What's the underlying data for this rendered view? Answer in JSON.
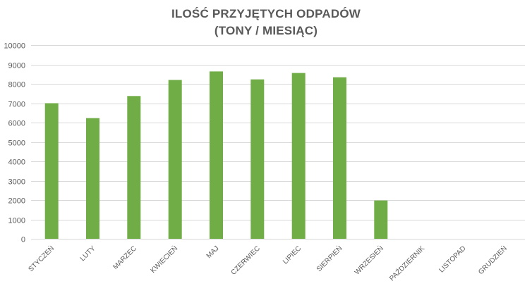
{
  "chart_data": {
    "type": "bar",
    "title": "ILOŚĆ PRZYJĘTYCH ODPADÓW",
    "subtitle": "(TONY / MIESIĄC)",
    "categories": [
      "STYCZEŃ",
      "LUTY",
      "MARZEC",
      "KWIECIEŃ",
      "MAJ",
      "CZERWIEC",
      "LIPIEC",
      "SIERPIEŃ",
      "WRZESIEŃ",
      "PAŹDZIERNIK",
      "LISTOPAD",
      "GRUDZIEŃ"
    ],
    "values": [
      7000,
      6230,
      7370,
      8200,
      8640,
      8230,
      8560,
      8340,
      1980,
      null,
      null,
      null
    ],
    "ylim": [
      0,
      10000
    ],
    "yticks": [
      "0",
      "1000",
      "2000",
      "3000",
      "4000",
      "5000",
      "6000",
      "7000",
      "8000",
      "9000",
      "10000"
    ],
    "xlabel": "",
    "ylabel": "",
    "grid": true,
    "bar_color": "#70ad47",
    "grid_color": "#d9d9d9",
    "text_color": "#595959"
  }
}
